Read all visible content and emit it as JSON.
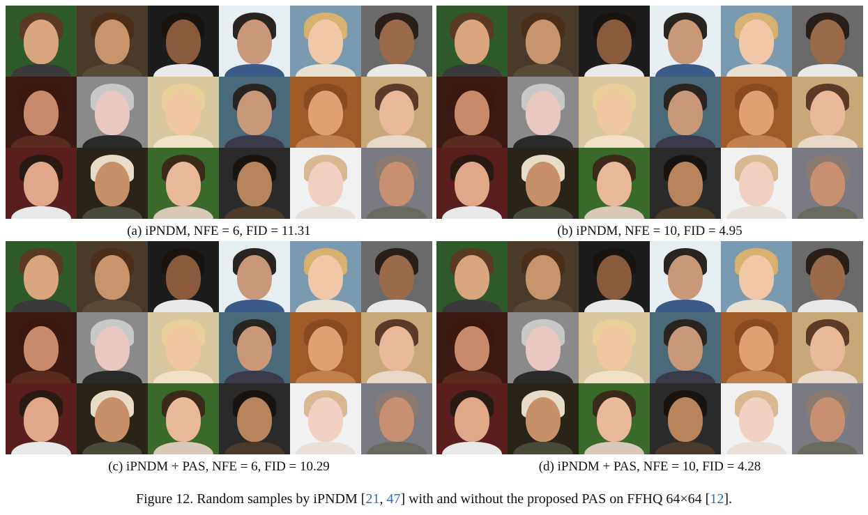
{
  "panels": [
    {
      "caption": "(a) iPNDM, NFE = 6, FID = 11.31"
    },
    {
      "caption": "(b) iPNDM, NFE = 10, FID = 4.95"
    },
    {
      "caption": "(c) iPNDM + PAS, NFE = 6, FID = 10.29"
    },
    {
      "caption": "(d) iPNDM + PAS, NFE = 10, FID = 4.28"
    }
  ],
  "figure_caption": {
    "prefix": "Figure 12. Random samples by iPNDM [",
    "cite1": "21",
    "sep1": ", ",
    "cite2": "47",
    "middle": "] with and without the proposed PAS on FFHQ 64×64 [",
    "cite3": "12",
    "suffix": "]."
  },
  "faces": [
    {
      "bg": "#2f5a2a",
      "skin": "#d9a57c",
      "hair": "#5a3a22",
      "cloth": "#3a3a3a"
    },
    {
      "bg": "#4a3a2c",
      "skin": "#c8946c",
      "hair": "#4a2e1a",
      "cloth": "#5a4a3a"
    },
    {
      "bg": "#1c1c1c",
      "skin": "#8a5a3c",
      "hair": "#1a1410",
      "cloth": "#e8e8e8"
    },
    {
      "bg": "#e6eef2",
      "skin": "#c89878",
      "hair": "#2a2420",
      "cloth": "#3a5a8a"
    },
    {
      "bg": "#7a9ab0",
      "skin": "#f0c8a8",
      "hair": "#d8b070",
      "cloth": "#e8e0d0"
    },
    {
      "bg": "#6a6a6a",
      "skin": "#9a6a4a",
      "hair": "#2a1e18",
      "cloth": "#e8e8e8"
    },
    {
      "bg": "#3a1a12",
      "skin": "#c88a6a",
      "hair": "#3a1810",
      "cloth": "#5a2a20"
    },
    {
      "bg": "#8a8a8a",
      "skin": "#e8c8c0",
      "hair": "#c8c8c8",
      "cloth": "#2a2a2a"
    },
    {
      "bg": "#d8c8a0",
      "skin": "#f0c8a0",
      "hair": "#e8d098",
      "cloth": "#f0e0c8"
    },
    {
      "bg": "#4a6a7a",
      "skin": "#c89878",
      "hair": "#2a2420",
      "cloth": "#3a3a4a"
    },
    {
      "bg": "#a05a28",
      "skin": "#e0a070",
      "hair": "#8a4a20",
      "cloth": "#c08050"
    },
    {
      "bg": "#c8a878",
      "skin": "#e8b898",
      "hair": "#5a3a28",
      "cloth": "#e8d8c8"
    },
    {
      "bg": "#5a1e1e",
      "skin": "#e0a888",
      "hair": "#2a1a14",
      "cloth": "#e8e8e8"
    },
    {
      "bg": "#2a2418",
      "skin": "#c89068",
      "hair": "#e8dcc8",
      "cloth": "#4a4a3a"
    },
    {
      "bg": "#3a6a2a",
      "skin": "#e8b898",
      "hair": "#3a2a1a",
      "cloth": "#d8c8b8"
    },
    {
      "bg": "#2a2a2a",
      "skin": "#b8845c",
      "hair": "#1a1410",
      "cloth": "#4a3a2a"
    },
    {
      "bg": "#f0f0f0",
      "skin": "#f0d0c0",
      "hair": "#d8b890",
      "cloth": "#e8e0d8"
    },
    {
      "bg": "#7a7a82",
      "skin": "#c89070",
      "hair": "#8a7a70",
      "cloth": "#6a6a60"
    }
  ]
}
